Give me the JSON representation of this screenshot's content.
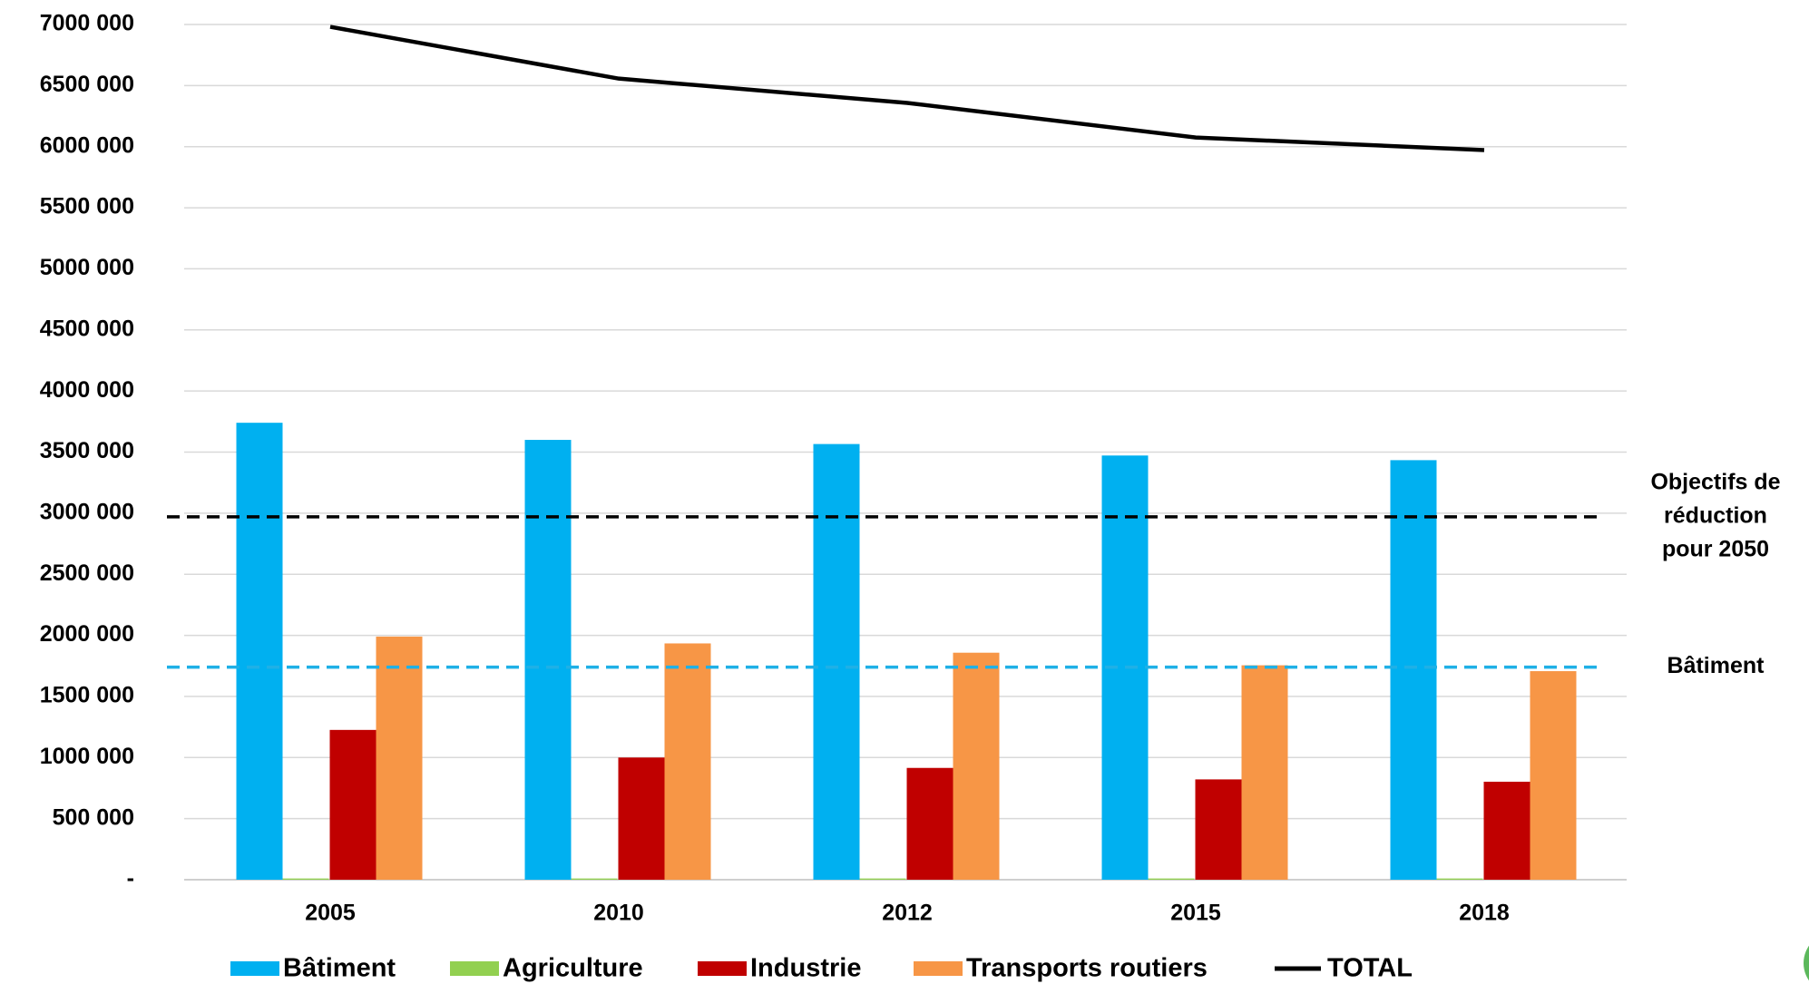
{
  "chart_data": {
    "type": "bar",
    "categories": [
      "2005",
      "2010",
      "2012",
      "2015",
      "2018"
    ],
    "series": [
      {
        "name": "Bâtiment",
        "color": "#00b0f0",
        "values": [
          3740000,
          3600000,
          3566000,
          3472000,
          3434000
        ]
      },
      {
        "name": "Agriculture",
        "color": "#92d050",
        "values": [
          10000,
          10000,
          10000,
          10000,
          10000
        ]
      },
      {
        "name": "Industrie",
        "color": "#c00000",
        "values": [
          1226000,
          1000000,
          915000,
          821000,
          802000
        ]
      },
      {
        "name": "Transports routiers",
        "color": "#f79646",
        "values": [
          1990000,
          1934000,
          1858000,
          1755000,
          1707000
        ]
      },
      {
        "name": "TOTAL",
        "color": "#000000",
        "type": "line",
        "values": [
          6981000,
          6557000,
          6358000,
          6075000,
          5972000
        ]
      }
    ],
    "reference_lines": [
      {
        "value": 2970000,
        "color": "#000000",
        "label": [
          "Objectifs de",
          "réduction",
          "pour 2050"
        ]
      },
      {
        "value": 1740000,
        "color": "#1fb0e6",
        "label": [
          "Bâtiment"
        ]
      }
    ],
    "ylim": [
      0,
      7000000
    ],
    "yticks": [
      {
        "value": 0,
        "label": "-"
      },
      {
        "value": 500000,
        "label": "500 000"
      },
      {
        "value": 1000000,
        "label": "1000 000"
      },
      {
        "value": 1500000,
        "label": "1500 000"
      },
      {
        "value": 2000000,
        "label": "2000 000"
      },
      {
        "value": 2500000,
        "label": "2500 000"
      },
      {
        "value": 3000000,
        "label": "3000 000"
      },
      {
        "value": 3500000,
        "label": "3500 000"
      },
      {
        "value": 4000000,
        "label": "4000 000"
      },
      {
        "value": 4500000,
        "label": "4500 000"
      },
      {
        "value": 5000000,
        "label": "5000 000"
      },
      {
        "value": 5500000,
        "label": "5500 000"
      },
      {
        "value": 6000000,
        "label": "6000 000"
      },
      {
        "value": 6500000,
        "label": "6500 000"
      },
      {
        "value": 7000000,
        "label": "7000 000"
      }
    ],
    "grid": true,
    "legend": "bottom"
  }
}
